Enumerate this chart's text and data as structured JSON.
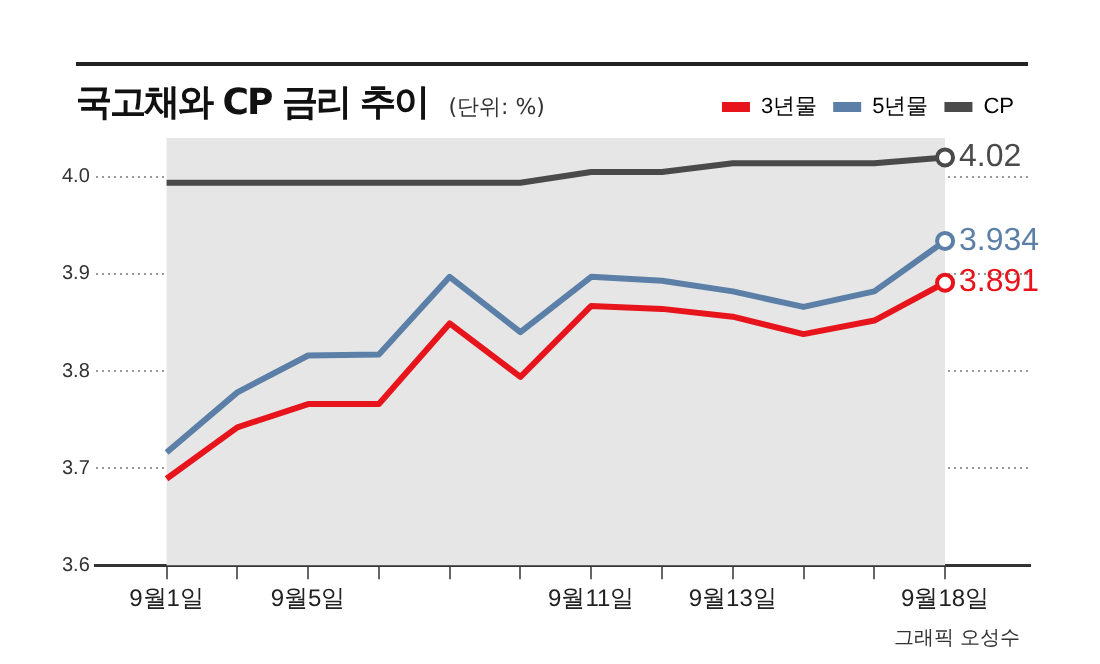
{
  "chart_data": {
    "type": "line",
    "title": "국고채와 CP 금리 추이",
    "subtitle": "(단위: %)",
    "categories": [
      "9월1일",
      null,
      "9월5일",
      null,
      null,
      null,
      "9월11일",
      null,
      "9월13일",
      null,
      null,
      "9월18일"
    ],
    "series": [
      {
        "name": "3년물",
        "color": "#e8141c",
        "values": [
          3.689,
          3.742,
          3.766,
          3.766,
          3.849,
          3.794,
          3.867,
          3.864,
          3.856,
          3.838,
          3.852,
          3.891
        ],
        "value_labels": [
          null,
          null,
          null,
          null,
          null,
          null,
          null,
          null,
          null,
          null,
          null,
          "3.891"
        ]
      },
      {
        "name": "5년물",
        "color": "#5b7fa6",
        "values": [
          3.716,
          3.778,
          3.816,
          3.817,
          3.897,
          3.84,
          3.897,
          3.893,
          3.882,
          3.866,
          3.882,
          3.934
        ],
        "value_labels": [
          null,
          null,
          null,
          null,
          null,
          null,
          null,
          null,
          null,
          null,
          null,
          "3.934"
        ]
      },
      {
        "name": "CP",
        "color": "#4a4a4a",
        "values": [
          3.994,
          3.994,
          3.994,
          3.994,
          3.994,
          3.994,
          4.005,
          4.005,
          4.014,
          4.014,
          4.014,
          4.02
        ],
        "value_labels": [
          null,
          null,
          null,
          null,
          null,
          null,
          null,
          null,
          null,
          null,
          null,
          "4.02"
        ]
      }
    ],
    "ylim": [
      3.6,
      4.04
    ],
    "yticks": [
      3.6,
      3.7,
      3.8,
      3.9,
      {
        "value": 4,
        "label": "4.0"
      }
    ],
    "bands": [
      {
        "axis": "x",
        "from": "9월1일",
        "to": "9월18일",
        "color": "#e6e6e6"
      }
    ],
    "grid": "y",
    "legend": "top right",
    "line_style": "solid",
    "annotations": [
      "그래픽 오성수"
    ]
  }
}
